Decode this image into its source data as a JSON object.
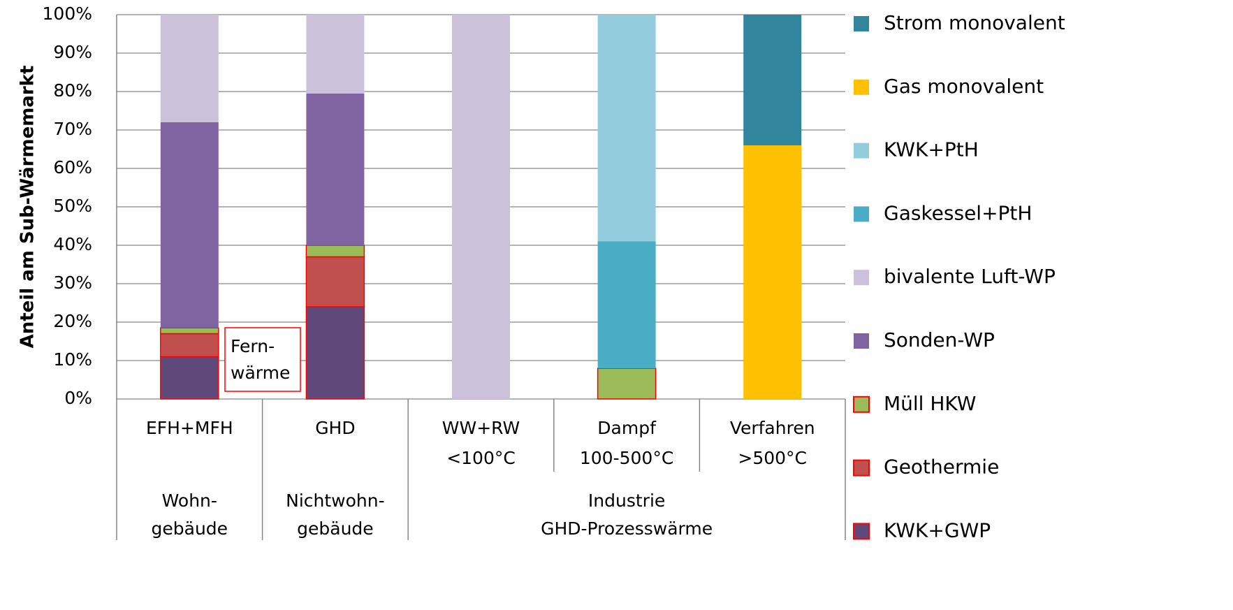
{
  "chart_data": {
    "type": "stacked_bar",
    "y_label": "Anteil am Sub-Wärmemarkt",
    "categories": [
      [
        "EFH+MFH"
      ],
      [
        "GHD"
      ],
      [
        "WW+RW",
        "<100°C"
      ],
      [
        "Dampf",
        "100-500°C"
      ],
      [
        "Verfahren",
        ">500°C"
      ]
    ],
    "groups": [
      {
        "lines": [
          "Wohn-",
          "gebäude"
        ],
        "span": 1
      },
      {
        "lines": [
          "Nichtwohn-",
          "gebäude"
        ],
        "span": 1
      },
      {
        "lines": [
          "Industrie",
          "GHD-Prozesswärme"
        ],
        "span": 3
      }
    ],
    "series": [
      {
        "name": "KWK+GWP",
        "color": "#604a7b",
        "edgecolor": "#ff0000",
        "values": [
          11,
          24,
          null,
          null,
          null
        ]
      },
      {
        "name": "Geothermie",
        "color": "#c0504d",
        "edgecolor": "#ff0000",
        "values": [
          6,
          13,
          null,
          null,
          null
        ]
      },
      {
        "name": "Müll HKW",
        "color": "#9bbb59",
        "edgecolor": "#ff0000",
        "values": [
          1.5,
          3,
          null,
          8,
          null
        ]
      },
      {
        "name": "Sonden-WP",
        "color": "#8064a2",
        "values": [
          53.5,
          39.5,
          null,
          null,
          null
        ]
      },
      {
        "name": "bivalente Luft-WP",
        "color": "#ccc1da",
        "values": [
          28,
          20.5,
          100,
          null,
          null
        ]
      },
      {
        "name": "Gaskessel+PtH",
        "color": "#4bacc6",
        "values": [
          null,
          null,
          null,
          33,
          null
        ]
      },
      {
        "name": "KWK+PtH",
        "color": "#93cddd",
        "values": [
          null,
          null,
          null,
          59,
          null
        ]
      },
      {
        "name": "Gas monovalent",
        "color": "#ffc000",
        "values": [
          null,
          null,
          null,
          null,
          66
        ]
      },
      {
        "name": "Strom monovalent",
        "color": "#31859c",
        "values": [
          null,
          null,
          null,
          null,
          34
        ]
      }
    ],
    "annotation": [
      "Fern-",
      "wärme"
    ],
    "ylim": [
      0,
      100
    ],
    "yticks": [
      {
        "value": 0,
        "label": "0%"
      },
      {
        "value": 10,
        "label": "10%"
      },
      {
        "value": 20,
        "label": "20%"
      },
      {
        "value": 30,
        "label": "30%"
      },
      {
        "value": 40,
        "label": "40%"
      },
      {
        "value": 50,
        "label": "50%"
      },
      {
        "value": 60,
        "label": "60%"
      },
      {
        "value": 70,
        "label": "70%"
      },
      {
        "value": 80,
        "label": "80%"
      },
      {
        "value": 90,
        "label": "90%"
      },
      {
        "value": 100,
        "label": "100%"
      }
    ],
    "grid": true,
    "legend": "right"
  }
}
